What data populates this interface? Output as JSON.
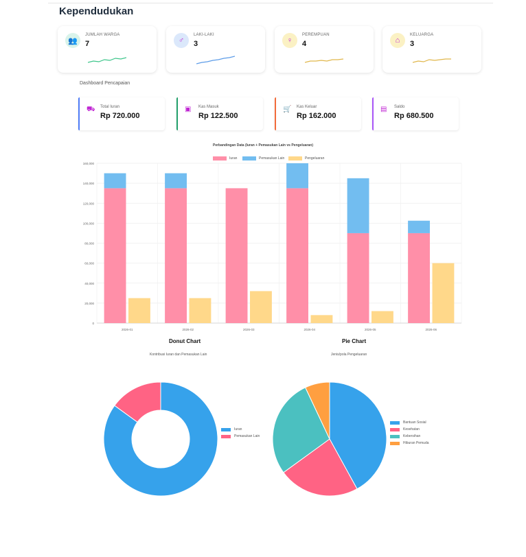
{
  "page": {
    "title": "Kependudukan"
  },
  "stats": [
    {
      "label": "JUMLAH WARGA",
      "value": "7",
      "icon": "users-icon",
      "glyph": "👥",
      "bg": "#d9f3ea",
      "fg": "#7c3aed",
      "spark_color": "#3cc58a"
    },
    {
      "label": "LAKI-LAKI",
      "value": "3",
      "icon": "male-icon",
      "glyph": "♂",
      "bg": "#dbe8fb",
      "fg": "#c026d3",
      "spark_color": "#5b9be8"
    },
    {
      "label": "PEREMPUAN",
      "value": "4",
      "icon": "female-icon",
      "glyph": "♀",
      "bg": "#fbf1c4",
      "fg": "#c026d3",
      "spark_color": "#e0b64a"
    },
    {
      "label": "KELUARGA",
      "value": "3",
      "icon": "home-icon",
      "glyph": "⌂",
      "bg": "#fbf1c4",
      "fg": "#c026d3",
      "spark_color": "#e0b64a"
    }
  ],
  "achievement": {
    "label": "Dashboard Pencapaian"
  },
  "finance": [
    {
      "label": "Total Iuran",
      "value": "Rp 720.000",
      "icon": "wallet-icon",
      "glyph": "⛟",
      "accent": "#4f7cf7"
    },
    {
      "label": "Kas Masuk",
      "value": "Rp 122.500",
      "icon": "cash-in-icon",
      "glyph": "▣",
      "accent": "#22a06b"
    },
    {
      "label": "Kas Keluar",
      "value": "Rp 162.000",
      "icon": "cart-icon",
      "glyph": "🛒",
      "accent": "#f26b3a"
    },
    {
      "label": "Saldo",
      "value": "Rp 680.500",
      "icon": "balance-icon",
      "glyph": "▤",
      "accent": "#a855f7"
    }
  ],
  "chart_data": [
    {
      "type": "bar",
      "title": "Perbandingan Data (Iuran + Pemasukan Lain vs Pengeluaran)",
      "categories": [
        "2026-01",
        "2026-02",
        "2026-03",
        "2026-04",
        "2026-05",
        "2026-06"
      ],
      "series": [
        {
          "name": "Iuran",
          "values": [
            135000,
            135000,
            135000,
            135000,
            90000,
            90000
          ],
          "color": "#ff8fa8",
          "stack": "income"
        },
        {
          "name": "Pemasukan Lain",
          "values": [
            15000,
            15000,
            0,
            25000,
            55000,
            12500
          ],
          "color": "#72bdf0",
          "stack": "income"
        },
        {
          "name": "Pengeluaran",
          "values": [
            25000,
            25000,
            32000,
            8000,
            12000,
            60000
          ],
          "color": "#ffd88a",
          "stack": "expense"
        }
      ],
      "ylim": [
        0,
        160000
      ],
      "yticks": [
        "0",
        "20,000",
        "40,000",
        "60,000",
        "80,000",
        "100,000",
        "120,000",
        "140,000",
        "160,000"
      ],
      "grid": true,
      "legend": "top"
    },
    {
      "type": "pie",
      "variant": "donut",
      "heading": "Donut Chart",
      "title": "Kontribusi Iuran dan Pemasukan Lain",
      "labels": [
        "Iuran",
        "Pemasukan Lain"
      ],
      "values": [
        85,
        15
      ],
      "colors": [
        "#36a2eb",
        "#ff6384"
      ],
      "legend": "right"
    },
    {
      "type": "pie",
      "heading": "Pie Chart",
      "title": "Jenis/pola Pengeluaran",
      "labels": [
        "Bantuan Sosial",
        "Kesehatan",
        "Kebersihan",
        "Hiburan Pemuda"
      ],
      "values": [
        42,
        23,
        28,
        7
      ],
      "colors": [
        "#36a2eb",
        "#ff6384",
        "#4bc0c0",
        "#ff9f40"
      ],
      "legend": "right"
    }
  ]
}
